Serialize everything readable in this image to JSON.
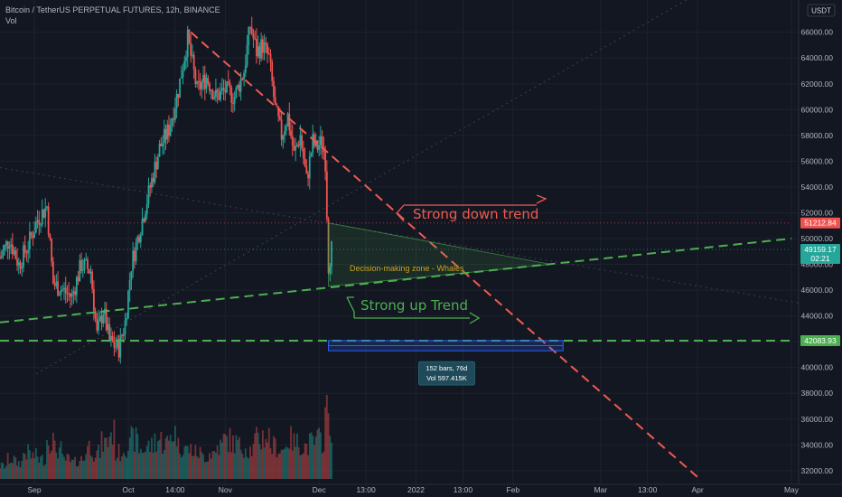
{
  "header": {
    "symbol_line": "Bitcoin / TetherUS PERPETUAL FUTURES, 12h, BINANCE",
    "indicator": "Vol",
    "currency_badge": "USDT"
  },
  "colors": {
    "background": "#131722",
    "up": "#26a69a",
    "down": "#ef5350",
    "trend_down": "#f05a50",
    "trend_up": "#4caf50",
    "zone_label": "#c9a227",
    "last_price_bg": "#26a69a",
    "price_red_bg": "#ef5350",
    "support_bg": "#4caf50",
    "range_box": "#2962ff"
  },
  "annotations": {
    "down_trend": "Strong down trend",
    "up_trend": "Strong up Trend",
    "zone": "Decision-making zone - Whales",
    "range_line1": "152 bars, 76d",
    "range_line2": "Vol 597.415K"
  },
  "price_labels": {
    "resistance": "51212.84",
    "last_price": "49159.17",
    "countdown": "02:21",
    "support": "42083.93"
  },
  "chart_data": {
    "type": "candlestick",
    "title": "Bitcoin / TetherUS PERPETUAL FUTURES, 12h, BINANCE",
    "ylim": [
      31500,
      68500
    ],
    "y_ticks": [
      32000,
      34000,
      36000,
      38000,
      40000,
      42000,
      44000,
      46000,
      48000,
      50000,
      52000,
      54000,
      56000,
      58000,
      60000,
      62000,
      64000,
      66000
    ],
    "y_tick_labels": [
      "32000.00",
      "34000.00",
      "36000.00",
      "38000.00",
      "40000.00",
      "42000.00",
      "44000.00",
      "46000.00",
      "48000.00",
      "50000.00",
      "52000.00",
      "54000.00",
      "56000.00",
      "58000.00",
      "60000.00",
      "62000.00",
      "64000.00",
      "66000.00"
    ],
    "x_labels": [
      "Sep",
      "Oct",
      "14:00",
      "Nov",
      "Dec",
      "13:00",
      "2022",
      "13:00",
      "Feb",
      "Mar",
      "13:00",
      "Apr",
      "May"
    ],
    "x_label_dates": [
      "2021-09-01",
      "2021-10-01",
      "2021-10-16",
      "2021-11-01",
      "2021-12-01",
      "2021-12-16",
      "2022-01-01",
      "2022-01-16",
      "2022-02-01",
      "2022-03-01",
      "2022-03-16",
      "2022-04-01",
      "2022-05-01"
    ],
    "price_path": [
      [
        "2021-08-21",
        48500
      ],
      [
        "2021-08-24",
        50000
      ],
      [
        "2021-08-27",
        48000
      ],
      [
        "2021-08-30",
        49500
      ],
      [
        "2021-09-02",
        51500
      ],
      [
        "2021-09-05",
        52500
      ],
      [
        "2021-09-07",
        46500
      ],
      [
        "2021-09-10",
        46000
      ],
      [
        "2021-09-13",
        45500
      ],
      [
        "2021-09-16",
        48000
      ],
      [
        "2021-09-19",
        47500
      ],
      [
        "2021-09-21",
        42500
      ],
      [
        "2021-09-23",
        44500
      ],
      [
        "2021-09-25",
        42000
      ],
      [
        "2021-09-28",
        41500
      ],
      [
        "2021-09-30",
        43500
      ],
      [
        "2021-10-02",
        48000
      ],
      [
        "2021-10-05",
        51000
      ],
      [
        "2021-10-08",
        54000
      ],
      [
        "2021-10-11",
        57000
      ],
      [
        "2021-10-14",
        58500
      ],
      [
        "2021-10-17",
        61500
      ],
      [
        "2021-10-20",
        65500
      ],
      [
        "2021-10-23",
        61500
      ],
      [
        "2021-10-26",
        62500
      ],
      [
        "2021-10-29",
        61000
      ],
      [
        "2021-11-01",
        61500
      ],
      [
        "2021-11-04",
        61000
      ],
      [
        "2021-11-07",
        63000
      ],
      [
        "2021-11-09",
        66500
      ],
      [
        "2021-11-11",
        64500
      ],
      [
        "2021-11-13",
        65000
      ],
      [
        "2021-11-15",
        64000
      ],
      [
        "2021-11-17",
        60000
      ],
      [
        "2021-11-19",
        58000
      ],
      [
        "2021-11-21",
        59500
      ],
      [
        "2021-11-23",
        56500
      ],
      [
        "2021-11-25",
        58000
      ],
      [
        "2021-11-27",
        54500
      ],
      [
        "2021-11-29",
        57500
      ],
      [
        "2021-11-30",
        57000
      ],
      [
        "2021-12-02",
        57500
      ],
      [
        "2021-12-03",
        56000
      ],
      [
        "2021-12-04",
        48000
      ],
      [
        "2021-12-05",
        49159
      ]
    ],
    "volume_profile": [
      0.2,
      0.3,
      0.25,
      0.4,
      0.35,
      0.3,
      0.6,
      0.45,
      0.3,
      0.25,
      0.3,
      0.5,
      0.4,
      0.55,
      0.7,
      0.4,
      0.5,
      0.6,
      0.45,
      0.5,
      0.6,
      0.55,
      0.7,
      0.5,
      0.45,
      0.4,
      0.35,
      0.4,
      0.5,
      0.6,
      0.55,
      0.5,
      0.45,
      0.6,
      0.65,
      0.5,
      0.45,
      0.6,
      0.55,
      0.5,
      0.55,
      0.6,
      1.0,
      0.7
    ],
    "lines": [
      {
        "name": "down-trend-line",
        "style": "dashed",
        "color": "trend_down",
        "from": [
          "2021-10-21",
          66000
        ],
        "to": [
          "2022-04-01",
          31500
        ]
      },
      {
        "name": "up-trend-line",
        "style": "dashed",
        "color": "trend_up",
        "from": [
          "2021-08-21",
          43500
        ],
        "to": [
          "2022-05-01",
          50000
        ]
      },
      {
        "name": "support-line",
        "style": "dashed",
        "color": "trend_up",
        "from": [
          "2021-08-21",
          42084
        ],
        "to": [
          "2022-05-01",
          42084
        ]
      },
      {
        "name": "resistance-level",
        "style": "dotted",
        "color": "down",
        "from": [
          "2021-08-21",
          51213
        ],
        "to": [
          "2022-05-01",
          51213
        ]
      },
      {
        "name": "last-price-level",
        "style": "dotted",
        "color": "up",
        "from": [
          "2021-08-21",
          49159
        ],
        "to": [
          "2022-05-01",
          49159
        ]
      }
    ],
    "zone": {
      "a": [
        "2021-12-04",
        51213
      ],
      "b": [
        "2021-12-04",
        46300
      ],
      "c": [
        "2022-02-13",
        48000
      ]
    },
    "date_range": {
      "from": [
        "2021-12-04",
        42084
      ],
      "to": [
        "2022-02-17",
        41300
      ],
      "bars": 152,
      "days": 76,
      "volume": "597.415K"
    }
  }
}
